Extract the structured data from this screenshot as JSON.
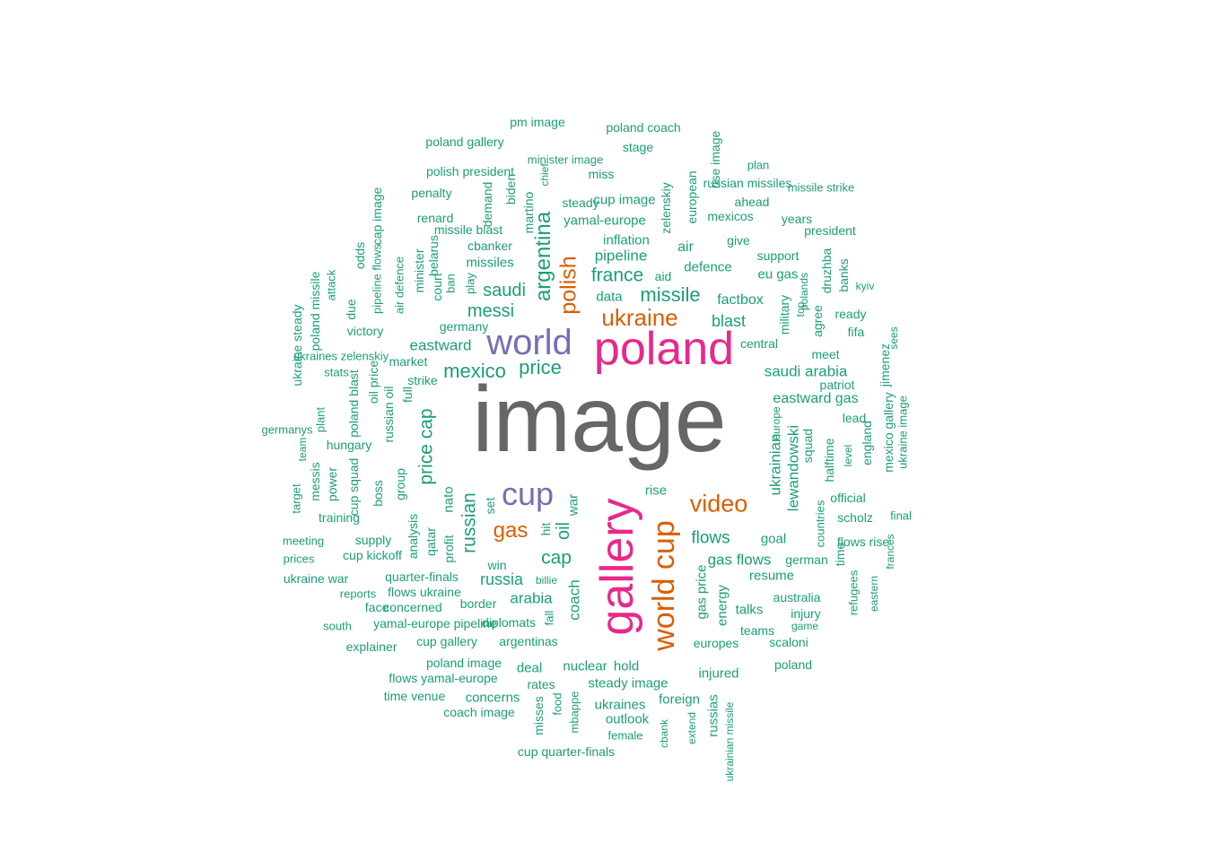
{
  "palette": {
    "teal": "#1b9e77",
    "orange": "#d95f02",
    "purple": "#7570b3",
    "magenta": "#e7298a",
    "gray": "#666666"
  },
  "words": [
    {
      "t": "image",
      "c": "gray"
    },
    {
      "t": "poland",
      "c": "magenta"
    },
    {
      "t": "gallery",
      "c": "magenta"
    },
    {
      "t": "world",
      "c": "purple"
    },
    {
      "t": "cup",
      "c": "purple"
    },
    {
      "t": "world cup",
      "c": "orange"
    },
    {
      "t": "ukraine",
      "c": "orange"
    },
    {
      "t": "polish",
      "c": "orange"
    },
    {
      "t": "video",
      "c": "orange"
    },
    {
      "t": "gas",
      "c": "orange"
    },
    {
      "t": "argentina",
      "c": "teal"
    },
    {
      "t": "missile",
      "c": "teal"
    },
    {
      "t": "france",
      "c": "teal"
    },
    {
      "t": "saudi",
      "c": "teal"
    },
    {
      "t": "messi",
      "c": "teal"
    },
    {
      "t": "mexico",
      "c": "teal"
    },
    {
      "t": "price",
      "c": "teal"
    },
    {
      "t": "price cap",
      "c": "teal"
    },
    {
      "t": "russian",
      "c": "teal"
    },
    {
      "t": "cap",
      "c": "teal"
    },
    {
      "t": "oil",
      "c": "teal"
    },
    {
      "t": "flows",
      "c": "teal"
    },
    {
      "t": "russia",
      "c": "teal"
    },
    {
      "t": "arabia",
      "c": "teal"
    },
    {
      "t": "coach",
      "c": "teal"
    },
    {
      "t": "blast",
      "c": "teal"
    },
    {
      "t": "eastward",
      "c": "teal"
    },
    {
      "t": "pipeline",
      "c": "teal"
    },
    {
      "t": "ukrainian",
      "c": "teal"
    },
    {
      "t": "lewandowski",
      "c": "teal"
    },
    {
      "t": "gas flows",
      "c": "teal"
    },
    {
      "t": "gas price",
      "c": "teal"
    },
    {
      "t": "saudi arabia",
      "c": "teal"
    },
    {
      "t": "eastward gas",
      "c": "teal"
    },
    {
      "t": "factbox",
      "c": "teal"
    },
    {
      "t": "defence",
      "c": "teal"
    },
    {
      "t": "inflation",
      "c": "teal"
    },
    {
      "t": "data",
      "c": "teal"
    },
    {
      "t": "aid",
      "c": "teal"
    },
    {
      "t": "air",
      "c": "teal"
    },
    {
      "t": "rise",
      "c": "teal"
    },
    {
      "t": "war",
      "c": "teal"
    },
    {
      "t": "hit",
      "c": "teal"
    },
    {
      "t": "set",
      "c": "teal"
    },
    {
      "t": "fall",
      "c": "teal"
    },
    {
      "t": "profit",
      "c": "teal"
    },
    {
      "t": "nato",
      "c": "teal"
    },
    {
      "t": "qatar",
      "c": "teal"
    },
    {
      "t": "analysis",
      "c": "teal"
    },
    {
      "t": "group",
      "c": "teal"
    },
    {
      "t": "win",
      "c": "teal"
    },
    {
      "t": "border",
      "c": "teal"
    },
    {
      "t": "billie",
      "c": "teal"
    },
    {
      "t": "energy",
      "c": "teal"
    },
    {
      "t": "talks",
      "c": "teal"
    },
    {
      "t": "teams",
      "c": "teal"
    },
    {
      "t": "europes",
      "c": "teal"
    },
    {
      "t": "injured",
      "c": "teal"
    },
    {
      "t": "foreign",
      "c": "teal"
    },
    {
      "t": "outlook",
      "c": "teal"
    },
    {
      "t": "female",
      "c": "teal"
    },
    {
      "t": "ukraines",
      "c": "teal"
    },
    {
      "t": "nuclear",
      "c": "teal"
    },
    {
      "t": "hold",
      "c": "teal"
    },
    {
      "t": "steady image",
      "c": "teal"
    },
    {
      "t": "deal",
      "c": "teal"
    },
    {
      "t": "rates",
      "c": "teal"
    },
    {
      "t": "concerns",
      "c": "teal"
    },
    {
      "t": "misses",
      "c": "teal"
    },
    {
      "t": "food",
      "c": "teal"
    },
    {
      "t": "mbappe",
      "c": "teal"
    },
    {
      "t": "cbank",
      "c": "teal"
    },
    {
      "t": "extend",
      "c": "teal"
    },
    {
      "t": "russias",
      "c": "teal"
    },
    {
      "t": "ukrainian missile",
      "c": "teal"
    },
    {
      "t": "cup quarter-finals",
      "c": "teal"
    },
    {
      "t": "coach image",
      "c": "teal"
    },
    {
      "t": "time venue",
      "c": "teal"
    },
    {
      "t": "flows yamal-europe",
      "c": "teal"
    },
    {
      "t": "poland image",
      "c": "teal"
    },
    {
      "t": "cup gallery",
      "c": "teal"
    },
    {
      "t": "argentinas",
      "c": "teal"
    },
    {
      "t": "explainer",
      "c": "teal"
    },
    {
      "t": "yamal-europe pipeline",
      "c": "teal"
    },
    {
      "t": "diplomats",
      "c": "teal"
    },
    {
      "t": "south",
      "c": "teal"
    },
    {
      "t": "face",
      "c": "teal"
    },
    {
      "t": "concerned",
      "c": "teal"
    },
    {
      "t": "reports",
      "c": "teal"
    },
    {
      "t": "flows ukraine",
      "c": "teal"
    },
    {
      "t": "quarter-finals",
      "c": "teal"
    },
    {
      "t": "ukraine war",
      "c": "teal"
    },
    {
      "t": "prices",
      "c": "teal"
    },
    {
      "t": "cup kickoff",
      "c": "teal"
    },
    {
      "t": "meeting",
      "c": "teal"
    },
    {
      "t": "supply",
      "c": "teal"
    },
    {
      "t": "training",
      "c": "teal"
    },
    {
      "t": "target",
      "c": "teal"
    },
    {
      "t": "messis",
      "c": "teal"
    },
    {
      "t": "power",
      "c": "teal"
    },
    {
      "t": "cup squad",
      "c": "teal"
    },
    {
      "t": "boss",
      "c": "teal"
    },
    {
      "t": "team",
      "c": "teal"
    },
    {
      "t": "germanys",
      "c": "teal"
    },
    {
      "t": "plant",
      "c": "teal"
    },
    {
      "t": "hungary",
      "c": "teal"
    },
    {
      "t": "poland blast",
      "c": "teal"
    },
    {
      "t": "oil price",
      "c": "teal"
    },
    {
      "t": "russian oil",
      "c": "teal"
    },
    {
      "t": "full",
      "c": "teal"
    },
    {
      "t": "strike",
      "c": "teal"
    },
    {
      "t": "market",
      "c": "teal"
    },
    {
      "t": "stats",
      "c": "teal"
    },
    {
      "t": "ukraines zelenskiy",
      "c": "teal"
    },
    {
      "t": "ukraine steady",
      "c": "teal"
    },
    {
      "t": "poland missile",
      "c": "teal"
    },
    {
      "t": "attack",
      "c": "teal"
    },
    {
      "t": "due",
      "c": "teal"
    },
    {
      "t": "victory",
      "c": "teal"
    },
    {
      "t": "odds",
      "c": "teal"
    },
    {
      "t": "pipeline flows",
      "c": "teal"
    },
    {
      "t": "cap image",
      "c": "teal"
    },
    {
      "t": "air defence",
      "c": "teal"
    },
    {
      "t": "minister",
      "c": "teal"
    },
    {
      "t": "court",
      "c": "teal"
    },
    {
      "t": "belarus",
      "c": "teal"
    },
    {
      "t": "ban",
      "c": "teal"
    },
    {
      "t": "play",
      "c": "teal"
    },
    {
      "t": "germany",
      "c": "teal"
    },
    {
      "t": "missiles",
      "c": "teal"
    },
    {
      "t": "cbanker",
      "c": "teal"
    },
    {
      "t": "missile blast",
      "c": "teal"
    },
    {
      "t": "renard",
      "c": "teal"
    },
    {
      "t": "penalty",
      "c": "teal"
    },
    {
      "t": "polish president",
      "c": "teal"
    },
    {
      "t": "poland gallery",
      "c": "teal"
    },
    {
      "t": "pm image",
      "c": "teal"
    },
    {
      "t": "poland coach",
      "c": "teal"
    },
    {
      "t": "stage",
      "c": "teal"
    },
    {
      "t": "minister image",
      "c": "teal"
    },
    {
      "t": "miss",
      "c": "teal"
    },
    {
      "t": "demand",
      "c": "teal"
    },
    {
      "t": "biden",
      "c": "teal"
    },
    {
      "t": "martino",
      "c": "teal"
    },
    {
      "t": "chief",
      "c": "teal"
    },
    {
      "t": "steady",
      "c": "teal"
    },
    {
      "t": "cup image",
      "c": "teal"
    },
    {
      "t": "yamal-europe",
      "c": "teal"
    },
    {
      "t": "zelenskiy",
      "c": "teal"
    },
    {
      "t": "european",
      "c": "teal"
    },
    {
      "t": "rise image",
      "c": "teal"
    },
    {
      "t": "plan",
      "c": "teal"
    },
    {
      "t": "russian missiles",
      "c": "teal"
    },
    {
      "t": "missile strike",
      "c": "teal"
    },
    {
      "t": "ahead",
      "c": "teal"
    },
    {
      "t": "mexicos",
      "c": "teal"
    },
    {
      "t": "years",
      "c": "teal"
    },
    {
      "t": "president",
      "c": "teal"
    },
    {
      "t": "give",
      "c": "teal"
    },
    {
      "t": "support",
      "c": "teal"
    },
    {
      "t": "eu gas",
      "c": "teal"
    },
    {
      "t": "druzhba",
      "c": "teal"
    },
    {
      "t": "banks",
      "c": "teal"
    },
    {
      "t": "kyiv",
      "c": "teal"
    },
    {
      "t": "top",
      "c": "teal"
    },
    {
      "t": "polands",
      "c": "teal"
    },
    {
      "t": "military",
      "c": "teal"
    },
    {
      "t": "agree",
      "c": "teal"
    },
    {
      "t": "ready",
      "c": "teal"
    },
    {
      "t": "fifa",
      "c": "teal"
    },
    {
      "t": "central",
      "c": "teal"
    },
    {
      "t": "meet",
      "c": "teal"
    },
    {
      "t": "jimenez",
      "c": "teal"
    },
    {
      "t": "sees",
      "c": "teal"
    },
    {
      "t": "patriot",
      "c": "teal"
    },
    {
      "t": "lead",
      "c": "teal"
    },
    {
      "t": "europe",
      "c": "teal"
    },
    {
      "t": "squad",
      "c": "teal"
    },
    {
      "t": "halftime",
      "c": "teal"
    },
    {
      "t": "level",
      "c": "teal"
    },
    {
      "t": "england",
      "c": "teal"
    },
    {
      "t": "mexico gallery",
      "c": "teal"
    },
    {
      "t": "ukraine image",
      "c": "teal"
    },
    {
      "t": "official",
      "c": "teal"
    },
    {
      "t": "scholz",
      "c": "teal"
    },
    {
      "t": "final",
      "c": "teal"
    },
    {
      "t": "countries",
      "c": "teal"
    },
    {
      "t": "goal",
      "c": "teal"
    },
    {
      "t": "flows rise",
      "c": "teal"
    },
    {
      "t": "frances",
      "c": "teal"
    },
    {
      "t": "time",
      "c": "teal"
    },
    {
      "t": "german",
      "c": "teal"
    },
    {
      "t": "resume",
      "c": "teal"
    },
    {
      "t": "refugees",
      "c": "teal"
    },
    {
      "t": "eastern",
      "c": "teal"
    },
    {
      "t": "australia",
      "c": "teal"
    },
    {
      "t": "injury",
      "c": "teal"
    },
    {
      "t": "game",
      "c": "teal"
    },
    {
      "t": "scaloni",
      "c": "teal"
    },
    {
      "t": "poland",
      "c": "teal"
    }
  ]
}
